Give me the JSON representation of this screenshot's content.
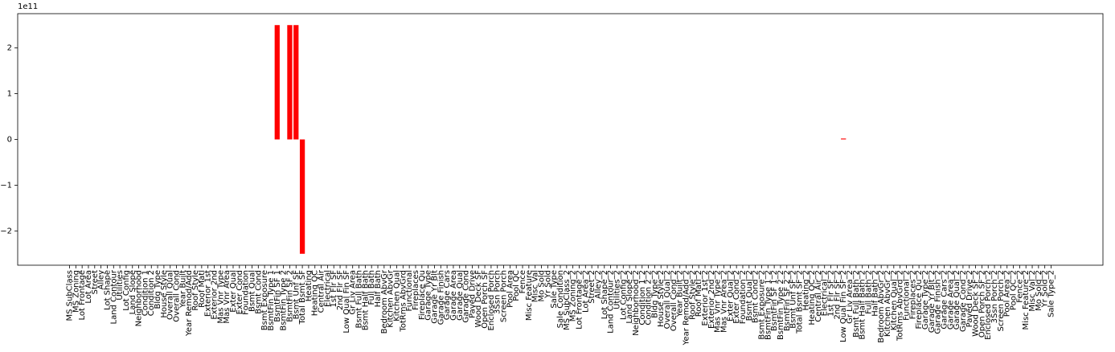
{
  "chart_data": {
    "type": "bar",
    "offset_text": "1e11",
    "color": "#ff0000",
    "categories": [
      "MS SubClass",
      "MS Zoning",
      "Lot Frontage",
      "Lot Area",
      "Street",
      "Alley",
      "Lot Shape",
      "Land Contour",
      "Utilities",
      "Lot Config",
      "Land Slope",
      "Neighborhood",
      "Condition 1",
      "Condition 2",
      "Bldg Type",
      "House Style",
      "Overall Qual",
      "Overall Cond",
      "Year Built",
      "Year Remod/Add",
      "Roof Style",
      "Roof Matl",
      "Exterior 1st",
      "Exterior 2nd",
      "Mas Vnr Type",
      "Mas Vnr Area",
      "Exter Qual",
      "Exter Cond",
      "Foundation",
      "Bsmt Qual",
      "Bsmt Cond",
      "Bsmt Exposure",
      "BsmtFin Type 1",
      "BsmtFin SF 1",
      "BsmtFin Type 2",
      "BsmtFin SF 2",
      "Bsmt Unf SF",
      "Total Bsmt SF",
      "Heating",
      "Heating QC",
      "Central Air",
      "Electrical",
      "1st Flr SF",
      "2nd Flr SF",
      "Low Qual Fin SF",
      "Gr Liv Area",
      "Bsmt Full Bath",
      "Bsmt Half Bath",
      "Full Bath",
      "Half Bath",
      "Bedroom AbvGr",
      "Kitchen AbvGr",
      "Kitchen Qual",
      "TotRms AbvGrd",
      "Functional",
      "Fireplaces",
      "Fireplace Qu",
      "Garage Type",
      "Garage Yr Blt",
      "Garage Finish",
      "Garage Cars",
      "Garage Area",
      "Garage Qual",
      "Garage Cond",
      "Paved Drive",
      "Wood Deck SF",
      "Open Porch SF",
      "Enclosed Porch",
      "3Ssn Porch",
      "Screen Porch",
      "Pool Area",
      "Pool QC",
      "Fence",
      "Misc Feature",
      "Misc Val",
      "Mo Sold",
      "Yr Sold",
      "Sale Type",
      "Sale Condition",
      "MS SubClass_2",
      "MS Zoning_2",
      "Lot Frontage_2",
      "Lot Area_2",
      "Street_2",
      "Alley_2",
      "Lot Shape_2",
      "Land Contour_2",
      "Utilities_2",
      "Lot Config_2",
      "Land Slope_2",
      "Neighborhood_2",
      "Condition 1_2",
      "Condition 2_2",
      "Bldg Type_2",
      "House Style_2",
      "Overall Qual_2",
      "Overall Cond_2",
      "Year Built_2",
      "Year Remod/Add_2",
      "Roof Style_2",
      "Roof Matl_2",
      "Exterior 1st_2",
      "Exterior 2nd_2",
      "Mas Vnr Type_2",
      "Mas Vnr Area_2",
      "Exter Qual_2",
      "Exter Cond_2",
      "Foundation_2",
      "Bsmt Qual_2",
      "Bsmt Cond_2",
      "Bsmt Exposure_2",
      "BsmtFin Type 1_2",
      "BsmtFin SF 1_2",
      "BsmtFin Type 2_2",
      "BsmtFin SF 2_2",
      "Bsmt Unf SF_2",
      "Total Bsmt SF_2",
      "Heating_2",
      "Heating QC_2",
      "Central Air_2",
      "Electrical_2",
      "1st Flr SF_2",
      "2nd Flr SF_2",
      "Low Qual Fin SF_2",
      "Gr Liv Area_2",
      "Bsmt Full Bath_2",
      "Bsmt Half Bath_2",
      "Full Bath_2",
      "Half Bath_2",
      "Bedroom AbvGr_2",
      "Kitchen AbvGr_2",
      "Kitchen Qual_2",
      "TotRms AbvGrd_2",
      "Functional_2",
      "Fireplaces_2",
      "Fireplace Qu_2",
      "Garage Type_2",
      "Garage Yr Blt_2",
      "Garage Finish_2",
      "Garage Cars_2",
      "Garage Area_2",
      "Garage Qual_2",
      "Garage Cond_2",
      "Paved Drive_2",
      "Wood Deck SF_2",
      "Open Porch SF_2",
      "Enclosed Porch_2",
      "3Ssn Porch_2",
      "Screen Porch_2",
      "Pool Area_2",
      "Pool QC_2",
      "Fence_2",
      "Misc Feature_2",
      "Misc Val_2",
      "Mo Sold_2",
      "Yr Sold_2",
      "Sale Type_2"
    ],
    "values": [
      0,
      0,
      0,
      0,
      0,
      0,
      0,
      0,
      0,
      0,
      0,
      0,
      0,
      0,
      0,
      0,
      0,
      0,
      0,
      0,
      0,
      0,
      0,
      0,
      0,
      0,
      0,
      0,
      0,
      0,
      0,
      0,
      0,
      250000000000,
      0,
      250000000000,
      250000000000,
      -250000000000,
      0,
      0,
      0,
      0,
      0,
      0,
      0,
      0,
      0,
      0,
      0,
      0,
      0,
      0,
      0,
      0,
      0,
      0,
      0,
      0,
      0,
      0,
      0,
      0,
      0,
      0,
      0,
      0,
      0,
      0,
      0,
      0,
      0,
      0,
      0,
      0,
      0,
      0,
      0,
      0,
      0,
      0,
      0,
      0,
      0,
      0,
      0,
      0,
      0,
      0,
      0,
      0,
      0,
      0,
      0,
      0,
      0,
      0,
      0,
      0,
      0,
      0,
      0,
      0,
      0,
      0,
      0,
      0,
      0,
      0,
      0,
      0,
      0,
      0,
      0,
      0,
      0,
      0,
      0,
      0,
      0,
      0,
      0,
      0,
      0,
      2000000000,
      0,
      0,
      0,
      0,
      0,
      0,
      0,
      0,
      0,
      0,
      0,
      0,
      0,
      0,
      0,
      0,
      0,
      0,
      0,
      0,
      0,
      0,
      0,
      0,
      0,
      0,
      0,
      0,
      0,
      0,
      0,
      0,
      0
    ],
    "ylim": [
      -275000000000,
      275000000000
    ],
    "yticks": [
      {
        "value": -200000000000,
        "label": "−2"
      },
      {
        "value": -100000000000,
        "label": "−1"
      },
      0,
      {
        "value": 100000000000,
        "label": "1"
      },
      {
        "value": 200000000000,
        "label": "2"
      }
    ],
    "grid": false
  }
}
